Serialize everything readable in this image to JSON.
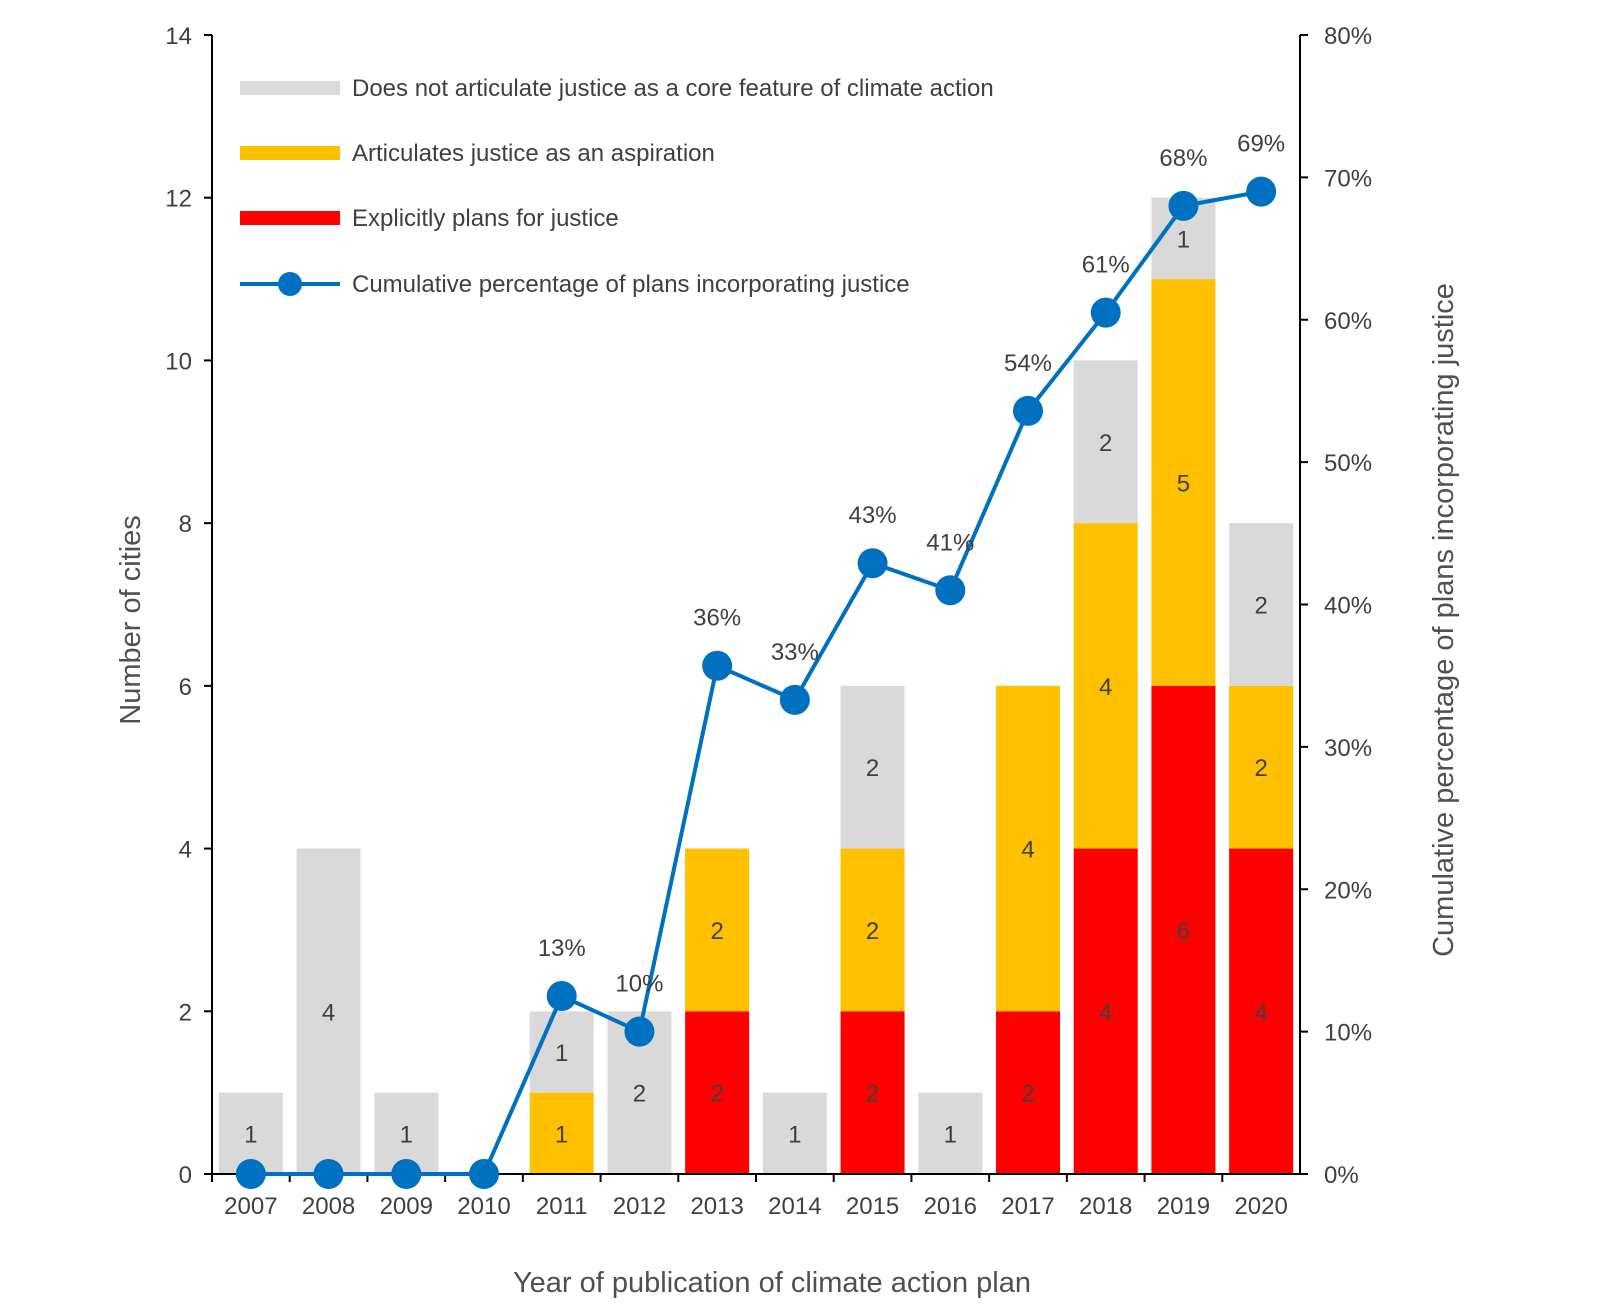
{
  "chart_data": {
    "type": "bar",
    "stacked": true,
    "categories": [
      "2007",
      "2008",
      "2009",
      "2010",
      "2011",
      "2012",
      "2013",
      "2014",
      "2015",
      "2016",
      "2017",
      "2018",
      "2019",
      "2020"
    ],
    "series": [
      {
        "key": "explicit",
        "name": "Explicitly plans for justice",
        "color": "#FF0000",
        "values": [
          0,
          0,
          0,
          0,
          0,
          0,
          2,
          0,
          2,
          0,
          2,
          4,
          6,
          4
        ]
      },
      {
        "key": "aspiration",
        "name": "Articulates justice as an aspiration",
        "color": "#FFC000",
        "values": [
          0,
          0,
          0,
          0,
          1,
          0,
          2,
          0,
          2,
          0,
          4,
          4,
          5,
          2
        ]
      },
      {
        "key": "none",
        "name": "Does not articulate justice as a core feature of climate action",
        "color": "#D9D9D9",
        "values": [
          1,
          4,
          1,
          0,
          1,
          2,
          0,
          1,
          2,
          1,
          0,
          2,
          1,
          2
        ]
      }
    ],
    "line_series": {
      "name": "Cumulative percentage of plans incorporating justice",
      "color": "#0070C0",
      "axis": "right",
      "values": [
        0,
        0,
        0,
        0,
        12.5,
        10,
        35.7,
        33.3,
        42.9,
        41,
        53.6,
        60.5,
        68,
        69
      ],
      "labels": [
        "",
        "",
        "",
        "",
        "13%",
        "10%",
        "36%",
        "33%",
        "43%",
        "41%",
        "54%",
        "61%",
        "68%",
        "69%"
      ]
    },
    "xlabel": "Year of publication of climate action plan",
    "ylabel": "Number of cities",
    "y2label": "Cumulative percentage of plans incorporating justice",
    "ylim": [
      0,
      14
    ],
    "yticks": [
      0,
      2,
      4,
      6,
      8,
      10,
      12,
      14
    ],
    "y2lim": [
      0,
      80
    ],
    "y2ticks": [
      "0%",
      "10%",
      "20%",
      "30%",
      "40%",
      "50%",
      "60%",
      "70%",
      "80%"
    ],
    "legend_order": [
      "none",
      "aspiration",
      "explicit",
      "line"
    ],
    "legend_position": "top-left",
    "grid": false
  }
}
